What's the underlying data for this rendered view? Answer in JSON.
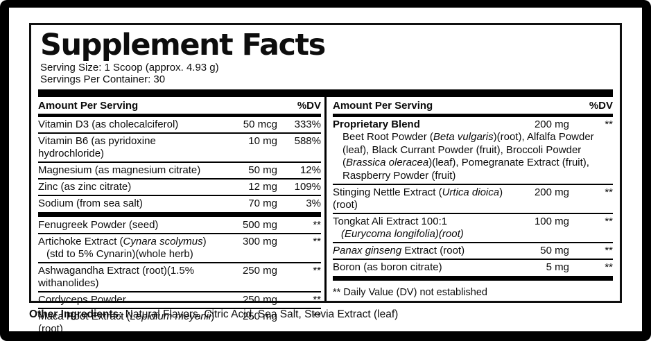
{
  "colors": {
    "ink": "#000000",
    "background": "#ffffff"
  },
  "panel": {
    "title": "Supplement Facts",
    "serving_size": "Serving Size: 1 Scoop (approx. 4.93 g)",
    "servings_per_container": "Servings Per Container: 30"
  },
  "columns": {
    "left": {
      "header": {
        "amount": "Amount Per Serving",
        "dv": "%DV"
      },
      "rows": [
        {
          "name": [
            {
              "t": "Vitamin D3 (as cholecalciferol)"
            }
          ],
          "amount": "50 mcg",
          "dv": "333%",
          "after": "thin"
        },
        {
          "name": [
            {
              "t": "Vitamin B6 (as pyridoxine hydrochloride)"
            }
          ],
          "amount": "10 mg",
          "dv": "588%",
          "after": "thin"
        },
        {
          "name": [
            {
              "t": "Magnesium (as magnesium citrate)"
            }
          ],
          "amount": "50 mg",
          "dv": "12%",
          "after": "thin"
        },
        {
          "name": [
            {
              "t": "Zinc (as zinc citrate)"
            }
          ],
          "amount": "12 mg",
          "dv": "109%",
          "after": "thin"
        },
        {
          "name": [
            {
              "t": "Sodium (from sea salt)"
            }
          ],
          "amount": "70 mg",
          "dv": "3%",
          "after": "thick"
        },
        {
          "name": [
            {
              "t": "Fenugreek Powder (seed)"
            }
          ],
          "amount": "500 mg",
          "dv": "**",
          "after": "thin"
        },
        {
          "name": [
            {
              "t": "Artichoke Extract ("
            },
            {
              "t": "Cynara scolymus",
              "i": true
            },
            {
              "t": ")"
            }
          ],
          "line2": [
            {
              "t": "(std to 5% Cynarin)(whole herb)"
            }
          ],
          "amount": "300 mg",
          "dv": "**",
          "after": "thin"
        },
        {
          "name": [
            {
              "t": "Ashwagandha Extract (root)(1.5% withanolides)"
            }
          ],
          "amount": "250 mg",
          "dv": "**",
          "after": "thin"
        },
        {
          "name": [
            {
              "t": "Cordyceps Powder"
            }
          ],
          "amount": "250 mg",
          "dv": "**",
          "after": "thin"
        },
        {
          "name": [
            {
              "t": "Maca Root Extract ("
            },
            {
              "t": "Lepidium meyenii",
              "i": true
            },
            {
              "t": ")(root)"
            }
          ],
          "amount": "250 mg",
          "dv": "**",
          "after": "none"
        }
      ]
    },
    "right": {
      "header": {
        "amount": "Amount Per Serving",
        "dv": "%DV"
      },
      "rows": [
        {
          "name": [
            {
              "t": "Proprietary Blend",
              "b": true
            }
          ],
          "amount": "200 mg",
          "dv": "**",
          "desc": [
            {
              "t": "Beet Root Powder ("
            },
            {
              "t": "Beta vulgaris",
              "i": true
            },
            {
              "t": ")(root), Alfalfa Powder (leaf), Black Currant Powder (fruit), Broccoli Powder ("
            },
            {
              "t": "Brassica oleracea",
              "i": true
            },
            {
              "t": ")(leaf), Pomegranate Extract (fruit), Raspberry Powder (fruit)"
            }
          ],
          "after": "thin"
        },
        {
          "name": [
            {
              "t": "Stinging Nettle Extract ("
            },
            {
              "t": "Urtica dioica",
              "i": true
            },
            {
              "t": ")(root)"
            }
          ],
          "amount": "200 mg",
          "dv": "**",
          "after": "thin"
        },
        {
          "name": [
            {
              "t": "Tongkat Ali Extract 100:1"
            }
          ],
          "line2": [
            {
              "t": "(Eurycoma longifolia)(root)",
              "i": true
            }
          ],
          "amount": "100 mg",
          "dv": "**",
          "after": "thin"
        },
        {
          "name": [
            {
              "t": "Panax ginseng",
              "i": true
            },
            {
              "t": " Extract (root)"
            }
          ],
          "amount": "50 mg",
          "dv": "**",
          "after": "thin"
        },
        {
          "name": [
            {
              "t": "Boron (as boron citrate)"
            }
          ],
          "amount": "5 mg",
          "dv": "**",
          "after": "thick"
        }
      ],
      "footnote": "** Daily Value (DV) not established"
    }
  },
  "other_ingredients": {
    "label": "Other Ingredients:",
    "text": " Natural Flavors, Citric Acid, Sea Salt, Stevia Extract (leaf)"
  }
}
